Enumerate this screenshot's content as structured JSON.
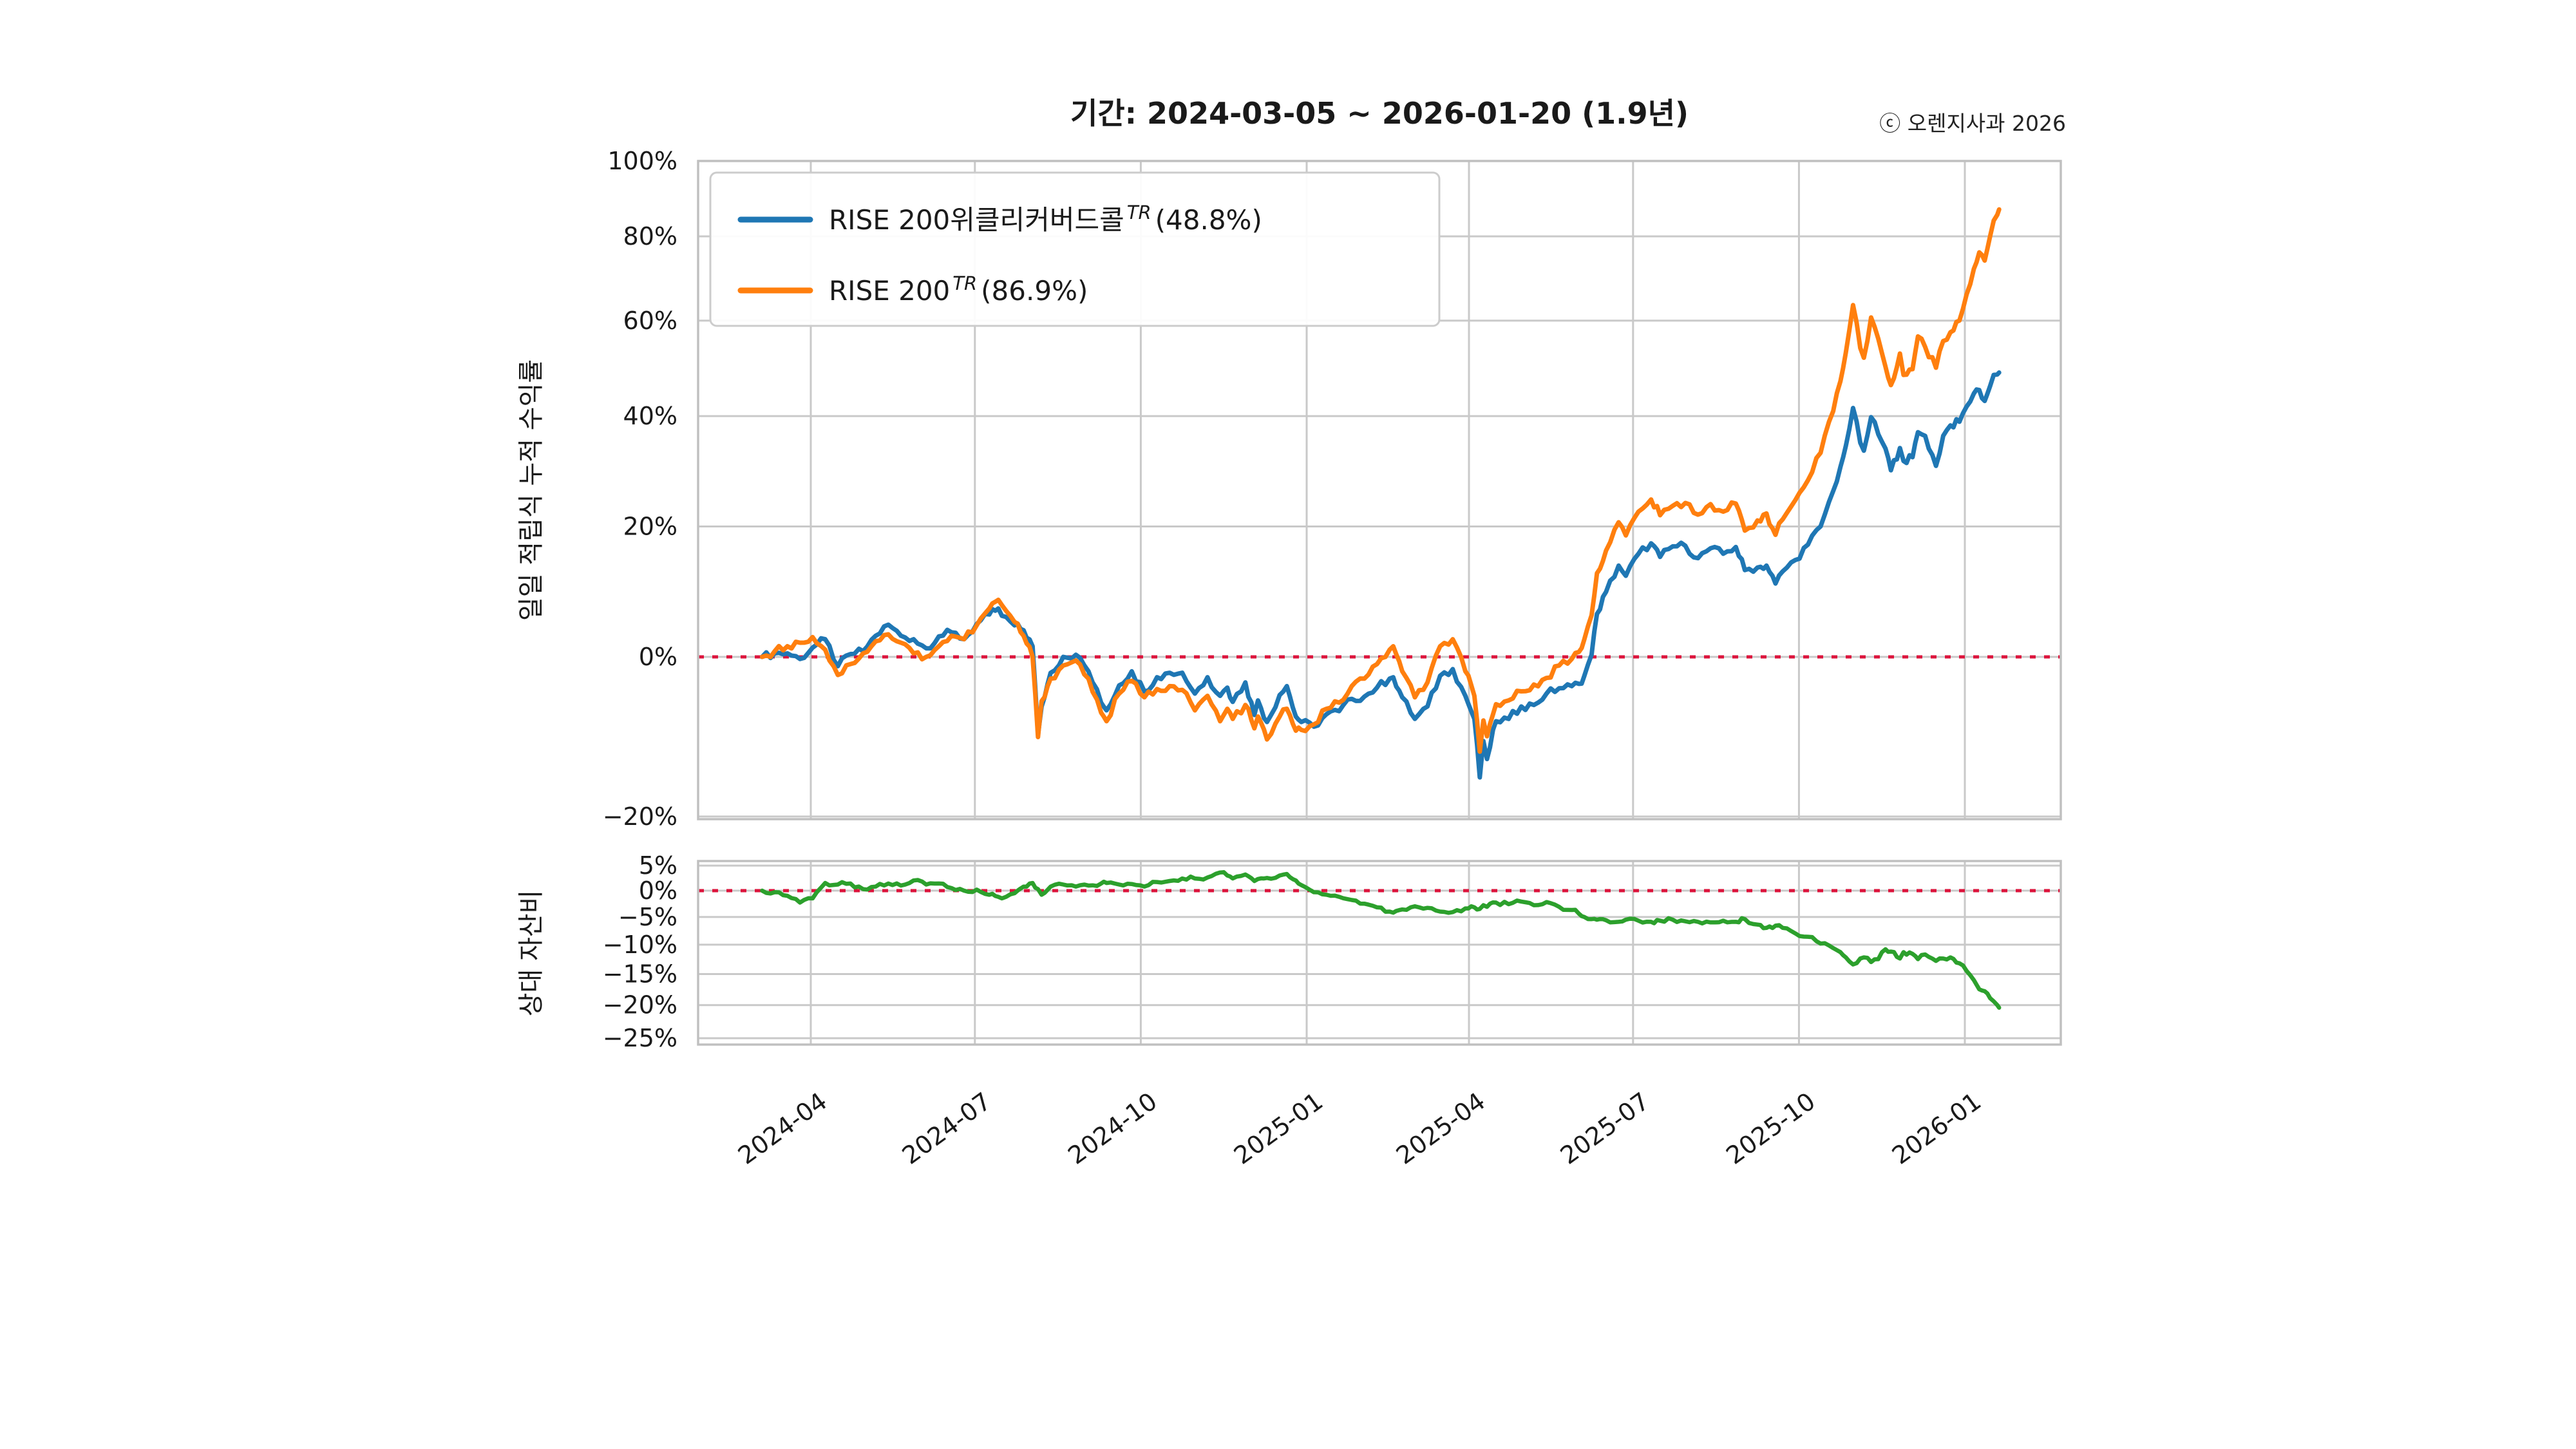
{
  "title": "기간: 2024-03-05 ~ 2026-01-20 (1.9년)",
  "watermark": "ⓒ 오렌지사과 2026",
  "legend": {
    "items": [
      {
        "name": "RISE 200위클리커버드콜",
        "sup": "TR",
        "pct": "(48.8%)",
        "color": "#1f77b4"
      },
      {
        "name": "RISE 200",
        "sup": "TR",
        "pct": "(86.9%)",
        "color": "#ff7f0e"
      }
    ]
  },
  "chart_data": {
    "type": "line",
    "title": "기간: 2024-03-05 ~ 2026-01-20 (1.9년)",
    "x_start_date": "2024-03-05",
    "x_end_date": "2026-01-20",
    "x_unit": "days_from_start",
    "x_tick_days": [
      27,
      118,
      210,
      302,
      392,
      483,
      575,
      667
    ],
    "x_tick_labels": [
      "2024-04",
      "2024-07",
      "2024-10",
      "2025-01",
      "2025-04",
      "2025-07",
      "2025-10",
      "2026-01"
    ],
    "grid": true,
    "legend_position": "upper left",
    "top_panel": {
      "ylabel": "일일 적립식 누적 수익률",
      "yscale": "log(1+r)",
      "ylim": [
        -20,
        100
      ],
      "yticks": [
        100,
        80,
        60,
        40,
        20,
        0,
        -20
      ],
      "ytick_labels": [
        "100%",
        "80%",
        "60%",
        "40%",
        "20%",
        "0%",
        "−20%"
      ],
      "zero_line": 0,
      "zero_line_color": "#dc143c"
    },
    "bottom_panel": {
      "ylabel": "상대 자산비",
      "yscale": "log(1+r)",
      "ylim": [
        -26,
        6
      ],
      "yticks": [
        5,
        0,
        -5,
        -10,
        -15,
        -20,
        -25
      ],
      "ytick_labels": [
        "5%",
        "0%",
        "−5%",
        "−10%",
        "−15%",
        "−20%",
        "−25%"
      ],
      "zero_line": 0,
      "zero_line_color": "#dc143c"
    },
    "days": [
      0,
      7,
      14,
      21,
      28,
      35,
      42,
      49,
      56,
      63,
      70,
      77,
      84,
      91,
      98,
      105,
      112,
      119,
      126,
      131,
      133,
      140,
      145,
      150,
      153,
      155,
      160,
      167,
      174,
      181,
      188,
      191,
      198,
      205,
      212,
      219,
      226,
      233,
      240,
      247,
      254,
      258,
      261,
      268,
      273,
      275,
      280,
      287,
      291,
      296,
      299,
      306,
      313,
      320,
      327,
      334,
      341,
      348,
      350,
      355,
      362,
      369,
      376,
      383,
      390,
      395,
      398,
      400,
      402,
      407,
      414,
      421,
      428,
      435,
      442,
      449,
      453,
      456,
      460,
      463,
      468,
      475,
      479,
      486,
      493,
      498,
      505,
      512,
      519,
      526,
      533,
      540,
      545,
      552,
      557,
      562,
      566,
      573,
      580,
      587,
      594,
      598,
      601,
      603,
      605,
      609,
      611,
      615,
      619,
      623,
      626,
      631,
      633,
      638,
      641,
      645,
      651,
      655,
      659,
      664,
      668,
      672,
      675,
      678,
      681,
      683,
      685,
      686
    ],
    "series": [
      {
        "name": "RISE 200위클리커버드콜",
        "sup": "TR",
        "final_return_pct": 48.8,
        "color": "#1f77b4",
        "panel": "top",
        "values": [
          0,
          0.5,
          0.5,
          -0.3,
          1.3,
          2.5,
          -1.3,
          0.4,
          0.8,
          3.0,
          4.6,
          3.0,
          2.5,
          1.2,
          2.9,
          3.5,
          2.5,
          4.7,
          6.1,
          7.0,
          5.9,
          4.5,
          3.8,
          1.5,
          -10.3,
          -6.7,
          -2.2,
          0.0,
          0.3,
          -2.0,
          -6.2,
          -7.2,
          -3.9,
          -2.0,
          -4.7,
          -2.8,
          -2.2,
          -2.2,
          -5.0,
          -2.8,
          -5.3,
          -4.2,
          -6.1,
          -3.5,
          -7.8,
          -5.9,
          -8.7,
          -5.2,
          -4.0,
          -8.0,
          -8.7,
          -9.3,
          -7.7,
          -7.3,
          -5.7,
          -5.4,
          -4.2,
          -3.0,
          -2.8,
          -5.5,
          -8.3,
          -6.7,
          -2.6,
          -1.7,
          -5.3,
          -8.3,
          -15.5,
          -11.1,
          -13.3,
          -8.6,
          -8.3,
          -6.7,
          -6.5,
          -5.0,
          -4.3,
          -4.0,
          -3.7,
          -2.6,
          0.3,
          6.2,
          9.5,
          13.6,
          12.0,
          15.5,
          17.2,
          15.0,
          16.7,
          16.8,
          14.8,
          16.4,
          15.5,
          16.6,
          12.9,
          13.3,
          13.6,
          10.8,
          12.7,
          14.5,
          17.0,
          20.0,
          26.1,
          30.4,
          34.3,
          37.6,
          41.6,
          34.9,
          33.4,
          39.8,
          36.5,
          33.8,
          29.8,
          33.9,
          31.5,
          32.2,
          36.9,
          36.2,
          30.6,
          36.2,
          38.2,
          38.9,
          41.9,
          44.5,
          45.2,
          43.0,
          46.0,
          48.3,
          48.4,
          48.8
        ]
      },
      {
        "name": "RISE 200",
        "sup": "TR",
        "final_return_pct": 86.9,
        "color": "#ff7f0e",
        "panel": "top",
        "values": [
          0,
          0.8,
          1.5,
          2.0,
          2.8,
          1.0,
          -2.5,
          -1.0,
          0.5,
          2.2,
          3.2,
          2.0,
          0.5,
          0.0,
          1.5,
          3.0,
          2.5,
          4.5,
          7.0,
          8.3,
          7.5,
          5.0,
          3.0,
          0.0,
          -10.6,
          -6.0,
          -3.0,
          -1.2,
          -0.5,
          -3.0,
          -7.5,
          -8.6,
          -5.0,
          -3.3,
          -5.5,
          -4.4,
          -4.0,
          -4.5,
          -7.2,
          -5.3,
          -8.6,
          -7.0,
          -8.3,
          -6.5,
          -9.5,
          -8.0,
          -10.9,
          -8.0,
          -7.0,
          -9.8,
          -9.7,
          -9.0,
          -7.0,
          -6.2,
          -4.0,
          -3.0,
          -1.0,
          1.0,
          1.5,
          -2.0,
          -5.5,
          -3.5,
          1.5,
          2.5,
          -2.0,
          -5.3,
          -12.4,
          -8.5,
          -10.5,
          -6.4,
          -5.9,
          -4.7,
          -3.8,
          -2.9,
          -1.2,
          -0.3,
          0.7,
          2.5,
          6.0,
          12.4,
          16.0,
          20.7,
          18.5,
          22.5,
          24.6,
          21.9,
          23.5,
          24.0,
          22.0,
          23.8,
          22.5,
          23.9,
          19.3,
          21.0,
          22.2,
          18.6,
          21.2,
          24.5,
          28.0,
          33.0,
          41.0,
          47.0,
          53.0,
          58.0,
          63.5,
          54.0,
          51.9,
          60.7,
          56.0,
          50.0,
          46.2,
          52.8,
          48.3,
          49.5,
          56.5,
          54.2,
          49.8,
          55.5,
          57.4,
          60.0,
          66.0,
          72.0,
          76.0,
          74.0,
          80.0,
          84.0,
          85.5,
          86.9
        ]
      },
      {
        "name": "상대 자산비",
        "final_return_pct": -20.4,
        "color": "#2ca02c",
        "panel": "bottom",
        "values": [
          0,
          -0.3,
          -1.0,
          -2.3,
          -1.5,
          1.5,
          1.2,
          1.4,
          0.3,
          0.8,
          1.4,
          1.0,
          2.0,
          1.2,
          1.4,
          0.5,
          0.0,
          0.2,
          -0.8,
          -1.2,
          -1.5,
          -0.5,
          0.8,
          1.5,
          0.3,
          -0.8,
          0.8,
          1.2,
          0.8,
          1.0,
          1.4,
          1.5,
          1.2,
          1.3,
          0.8,
          1.7,
          1.9,
          2.4,
          2.4,
          2.6,
          3.6,
          3.0,
          2.4,
          3.2,
          1.9,
          2.3,
          2.5,
          3.0,
          3.3,
          2.0,
          1.1,
          -0.3,
          -0.8,
          -1.2,
          -1.8,
          -2.5,
          -3.2,
          -4.0,
          -4.2,
          -3.6,
          -3.0,
          -3.3,
          -4.0,
          -4.1,
          -3.4,
          -3.2,
          -3.5,
          -2.8,
          -3.1,
          -2.3,
          -2.6,
          -2.1,
          -2.8,
          -2.2,
          -3.1,
          -3.7,
          -4.4,
          -5.0,
          -5.4,
          -5.5,
          -5.6,
          -5.9,
          -5.5,
          -5.7,
          -5.9,
          -5.7,
          -5.5,
          -5.8,
          -5.9,
          -6.0,
          -5.7,
          -5.9,
          -5.4,
          -6.4,
          -7.0,
          -6.6,
          -7.0,
          -8.0,
          -8.6,
          -9.8,
          -10.6,
          -11.3,
          -12.2,
          -12.9,
          -13.4,
          -12.4,
          -12.2,
          -13.0,
          -12.5,
          -10.8,
          -11.2,
          -12.4,
          -11.3,
          -11.6,
          -12.5,
          -11.7,
          -12.8,
          -12.4,
          -12.2,
          -13.2,
          -14.5,
          -16.0,
          -17.5,
          -17.8,
          -18.9,
          -19.4,
          -20.0,
          -20.4
        ]
      }
    ]
  }
}
